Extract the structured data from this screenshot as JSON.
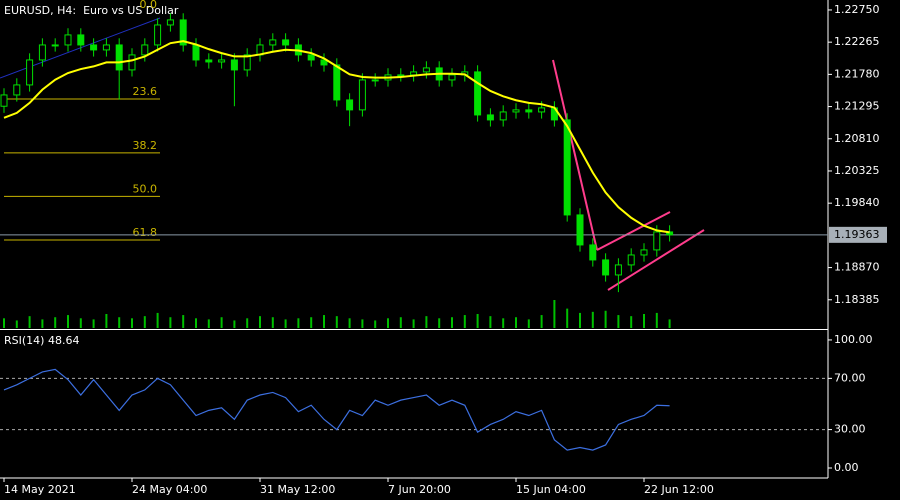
{
  "chart_data": [
    {
      "type": "candlestick",
      "title": "EURUSD, H4:  Euro vs US Dollar",
      "categories": [
        "14 May 2021",
        null,
        null,
        null,
        null,
        null,
        null,
        null,
        null,
        null,
        "24 May 04:00",
        null,
        null,
        null,
        null,
        null,
        null,
        null,
        null,
        null,
        "31 May 12:00",
        null,
        null,
        null,
        null,
        null,
        null,
        null,
        null,
        null,
        "7 Jun 20:00",
        null,
        null,
        null,
        null,
        null,
        null,
        null,
        null,
        null,
        "15 Jun 04:00",
        null,
        null,
        null,
        null,
        null,
        null,
        null,
        null,
        null,
        "22 Jun 12:00",
        null,
        null
      ],
      "open": [
        1.213,
        1.2147,
        1.21621,
        1.21997,
        1.22223,
        1.22223,
        1.22374,
        1.22223,
        1.22148,
        1.22223,
        1.21847,
        1.22073,
        1.22223,
        1.22524,
        1.226,
        1.22223,
        1.21997,
        1.21967,
        1.21997,
        1.21847,
        1.22073,
        1.22223,
        1.22299,
        1.22223,
        1.22073,
        1.21997,
        1.21922,
        1.21395,
        1.21245,
        1.21696,
        1.21696,
        1.21772,
        1.21772,
        1.21817,
        1.21877,
        1.21696,
        1.21772,
        1.21817,
        1.21169,
        1.21094,
        1.21214,
        1.21245,
        1.21214,
        1.21275,
        1.21094,
        1.19663,
        1.19211,
        1.18985,
        1.18759,
        1.1891,
        1.1906,
        1.19136,
        1.19407
      ],
      "high": [
        1.2157,
        1.21721,
        1.22097,
        1.22323,
        1.22323,
        1.22474,
        1.22474,
        1.22323,
        1.22323,
        1.22323,
        1.22173,
        1.22323,
        1.22624,
        1.227,
        1.227,
        1.22323,
        1.22097,
        1.22097,
        1.22097,
        1.22173,
        1.22323,
        1.22399,
        1.22399,
        1.22323,
        1.22173,
        1.22097,
        1.22022,
        1.21495,
        1.21796,
        1.21796,
        1.21872,
        1.21872,
        1.21917,
        1.21977,
        1.21977,
        1.21872,
        1.21917,
        1.21917,
        1.21269,
        1.21314,
        1.21345,
        1.21345,
        1.21375,
        1.21375,
        1.21194,
        1.19763,
        1.19311,
        1.19085,
        1.1901,
        1.1916,
        1.19236,
        1.19507,
        1.19507
      ],
      "low": [
        1.212,
        1.2137,
        1.21521,
        1.21897,
        1.22123,
        1.22123,
        1.22123,
        1.22048,
        1.22048,
        1.214,
        1.21747,
        1.21973,
        1.22123,
        1.22424,
        1.22123,
        1.21897,
        1.21867,
        1.21867,
        1.213,
        1.21747,
        1.21973,
        1.22123,
        1.22123,
        1.21973,
        1.21897,
        1.21822,
        1.21295,
        1.21,
        1.21145,
        1.21596,
        1.21596,
        1.21672,
        1.21672,
        1.21717,
        1.21596,
        1.21596,
        1.21672,
        1.21069,
        1.20994,
        1.20994,
        1.21114,
        1.21114,
        1.21114,
        1.20994,
        1.19563,
        1.19111,
        1.18885,
        1.18659,
        1.185,
        1.1881,
        1.1896,
        1.19036,
        1.19263
      ],
      "close": [
        1.2147,
        1.21621,
        1.21997,
        1.22223,
        1.22223,
        1.22374,
        1.22223,
        1.22148,
        1.22223,
        1.21847,
        1.22073,
        1.22223,
        1.22524,
        1.226,
        1.22223,
        1.21997,
        1.21967,
        1.21997,
        1.21847,
        1.22073,
        1.22223,
        1.22299,
        1.22223,
        1.22073,
        1.21997,
        1.21922,
        1.21395,
        1.21245,
        1.21696,
        1.21696,
        1.21772,
        1.21772,
        1.21817,
        1.21877,
        1.21696,
        1.21772,
        1.21817,
        1.21169,
        1.21094,
        1.21214,
        1.21245,
        1.21214,
        1.21275,
        1.21094,
        1.19663,
        1.19211,
        1.18985,
        1.18759,
        1.1891,
        1.1906,
        1.19136,
        1.19407,
        1.19363
      ],
      "color": "#00e000",
      "ma": {
        "color": "#ffff00",
        "values": [
          1.21125,
          1.212,
          1.2135,
          1.2155,
          1.217,
          1.218,
          1.2186,
          1.219,
          1.2196,
          1.2196,
          1.2199,
          1.2205,
          1.2215,
          1.2225,
          1.2228,
          1.2223,
          1.2216,
          1.221,
          1.2205,
          1.2205,
          1.2208,
          1.2212,
          1.2215,
          1.2214,
          1.221,
          1.2202,
          1.219,
          1.2178,
          1.2174,
          1.2173,
          1.2173,
          1.2174,
          1.2176,
          1.2178,
          1.2179,
          1.2179,
          1.2178,
          1.2165,
          1.2153,
          1.2145,
          1.2139,
          1.2135,
          1.2133,
          1.2128,
          1.21,
          1.2065,
          1.203,
          1.2,
          1.1978,
          1.1962,
          1.195,
          1.1943,
          1.194
        ]
      },
      "volume": {
        "color": "#00c000",
        "values": [
          9000,
          7000,
          11000,
          8000,
          10000,
          12000,
          9000,
          8000,
          13000,
          10000,
          9000,
          11000,
          14000,
          10000,
          12000,
          9000,
          8000,
          10000,
          7000,
          9000,
          11000,
          10000,
          8000,
          9000,
          10000,
          12000,
          11000,
          9000,
          8000,
          7000,
          9000,
          10000,
          8000,
          11000,
          9000,
          10000,
          12000,
          13000,
          11000,
          9000,
          10000,
          8000,
          12000,
          26000,
          18000,
          14000,
          15000,
          16000,
          12000,
          11000,
          13000,
          14000,
          8000
        ]
      },
      "fibo": {
        "color": "#c8b400",
        "from": 1.2272,
        "to": 1.17163,
        "levels": [
          {
            "value": 0,
            "label": "0.0"
          },
          23.6,
          38.2,
          {
            "value": 50,
            "label": "50.0"
          },
          61.8
        ]
      },
      "last_price": 1.19363,
      "ylim": [
        1.1796,
        1.229
      ],
      "yticks": [
        {
          "value": 1.2275,
          "label": "1.22750"
        },
        1.22265,
        {
          "value": 1.2178,
          "label": "1.21780"
        },
        1.21295,
        {
          "value": 1.2081,
          "label": "1.20810"
        },
        1.20325,
        {
          "value": 1.1984,
          "label": "1.19840"
        },
        {
          "value": 1.1887,
          "label": "1.18870"
        },
        1.18385
      ]
    },
    {
      "type": "line",
      "title": "RSI(14) 48.64",
      "color": "#3c6fe0",
      "values": [
        61,
        65,
        70,
        75,
        77,
        69,
        57,
        69,
        57,
        45,
        57,
        61,
        70,
        65,
        53,
        41,
        45,
        47,
        38,
        53,
        57,
        59,
        55,
        44,
        49,
        38,
        30,
        45,
        41,
        53,
        49,
        53,
        55,
        57,
        49,
        53,
        49,
        28,
        34,
        38,
        44,
        41,
        45,
        22,
        14,
        16,
        14,
        18,
        34,
        38,
        41,
        49,
        48.64
      ],
      "levels": [
        70,
        30
      ],
      "ylim": [
        -7.8,
        106.2
      ],
      "yticks": [
        {
          "value": 100,
          "label": "100.00"
        },
        {
          "value": 70,
          "label": "70.00"
        },
        {
          "value": 30,
          "label": "30.00"
        },
        {
          "value": 0,
          "label": "0.00"
        }
      ]
    }
  ]
}
